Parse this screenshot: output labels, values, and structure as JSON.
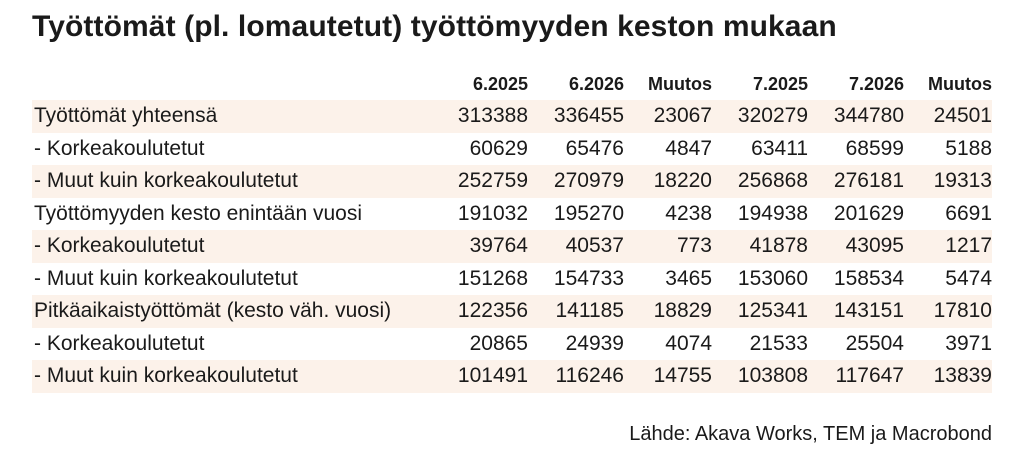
{
  "title": "Työttömät (pl. lomautetut) työttömyyden keston mukaan",
  "columns": [
    "",
    "6.2025",
    "6.2026",
    "Muutos",
    "7.2025",
    "7.2026",
    "Muutos"
  ],
  "rows": [
    {
      "label": "Työttömät yhteensä",
      "values": [
        "313388",
        "336455",
        "23067",
        "320279",
        "344780",
        "24501"
      ]
    },
    {
      "label": "- Korkeakoulutetut",
      "values": [
        "60629",
        "65476",
        "4847",
        "63411",
        "68599",
        "5188"
      ]
    },
    {
      "label": "- Muut kuin korkeakoulutetut",
      "values": [
        "252759",
        "270979",
        "18220",
        "256868",
        "276181",
        "19313"
      ]
    },
    {
      "label": "Työttömyyden kesto enintään vuosi",
      "values": [
        "191032",
        "195270",
        "4238",
        "194938",
        "201629",
        "6691"
      ]
    },
    {
      "label": "- Korkeakoulutetut",
      "values": [
        "39764",
        "40537",
        "773",
        "41878",
        "43095",
        "1217"
      ]
    },
    {
      "label": "- Muut kuin korkeakoulutetut",
      "values": [
        "151268",
        "154733",
        "3465",
        "153060",
        "158534",
        "5474"
      ]
    },
    {
      "label": "Pitkäaikaistyöttömät (kesto väh. vuosi)",
      "values": [
        "122356",
        "141185",
        "18829",
        "125341",
        "143151",
        "17810"
      ]
    },
    {
      "label": "- Korkeakoulutetut",
      "values": [
        "20865",
        "24939",
        "4074",
        "21533",
        "25504",
        "3971"
      ]
    },
    {
      "label": "- Muut kuin korkeakoulutetut",
      "values": [
        "101491",
        "116246",
        "14755",
        "103808",
        "117647",
        "13839"
      ]
    }
  ],
  "source": "Lähde: Akava Works, TEM ja Macrobond",
  "colors": {
    "row_shade": "#fcf2ea",
    "text": "#1a1a1a"
  }
}
